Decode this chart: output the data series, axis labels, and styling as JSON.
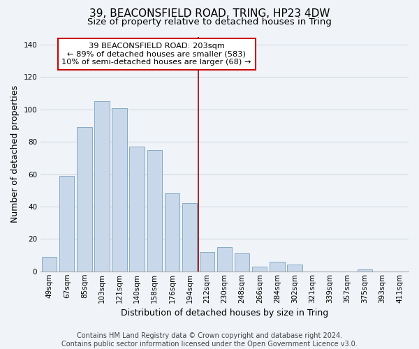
{
  "title": "39, BEACONSFIELD ROAD, TRING, HP23 4DW",
  "subtitle": "Size of property relative to detached houses in Tring",
  "xlabel": "Distribution of detached houses by size in Tring",
  "ylabel": "Number of detached properties",
  "footer_line1": "Contains HM Land Registry data © Crown copyright and database right 2024.",
  "footer_line2": "Contains public sector information licensed under the Open Government Licence v3.0.",
  "bar_labels": [
    "49sqm",
    "67sqm",
    "85sqm",
    "103sqm",
    "121sqm",
    "140sqm",
    "158sqm",
    "176sqm",
    "194sqm",
    "212sqm",
    "230sqm",
    "248sqm",
    "266sqm",
    "284sqm",
    "302sqm",
    "321sqm",
    "339sqm",
    "357sqm",
    "375sqm",
    "393sqm",
    "411sqm"
  ],
  "bar_values": [
    9,
    59,
    89,
    105,
    101,
    77,
    75,
    48,
    42,
    12,
    15,
    11,
    3,
    6,
    4,
    0,
    0,
    0,
    1,
    0,
    0
  ],
  "bar_color": "#c8d8ea",
  "bar_edge_color": "#7aa0be",
  "highlight_bar_index": 8,
  "vline_color": "#990000",
  "ylim": [
    0,
    145
  ],
  "yticks": [
    0,
    20,
    40,
    60,
    80,
    100,
    120,
    140
  ],
  "annotation_title": "39 BEACONSFIELD ROAD: 203sqm",
  "annotation_line1": "← 89% of detached houses are smaller (583)",
  "annotation_line2": "10% of semi-detached houses are larger (68) →",
  "title_fontsize": 11,
  "subtitle_fontsize": 9.5,
  "label_fontsize": 9,
  "tick_fontsize": 7.5,
  "footer_fontsize": 7,
  "grid_color": "#c8d4dc",
  "background_color": "#f0f4f8"
}
